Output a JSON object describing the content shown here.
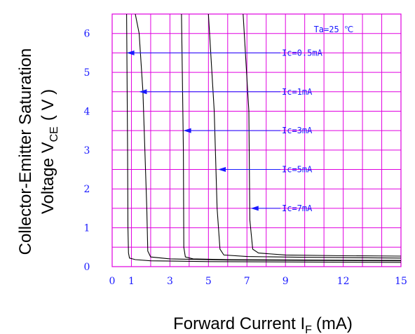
{
  "chart_data": {
    "type": "line",
    "title": "",
    "xlabel": {
      "main": "Forward Current I",
      "sub": "F",
      "unit": "(mA)"
    },
    "ylabel": {
      "line1": "Collector-Emitter Saturation",
      "line2_main": "Voltage V",
      "line2_sub": "CE",
      "line2_unit": "( V )"
    },
    "condition": "Ta=25 ℃",
    "xlim": [
      0,
      15
    ],
    "ylim": [
      0,
      6.5
    ],
    "x_ticks": [
      {
        "value": 0,
        "label": "0"
      },
      {
        "value": 1,
        "label": "1"
      },
      {
        "value": 3,
        "label": "3"
      },
      {
        "value": 5,
        "label": "5"
      },
      {
        "value": 7,
        "label": "7"
      },
      {
        "value": 9,
        "label": "9"
      },
      {
        "value": 12,
        "label": "12"
      },
      {
        "value": 15,
        "label": "15"
      }
    ],
    "y_ticks": [
      {
        "value": 0,
        "label": "0"
      },
      {
        "value": 1,
        "label": "1"
      },
      {
        "value": 2,
        "label": "2"
      },
      {
        "value": 3,
        "label": "3"
      },
      {
        "value": 4,
        "label": "4"
      },
      {
        "value": 5,
        "label": "5"
      },
      {
        "value": 6,
        "label": "6"
      }
    ],
    "grid": true,
    "series": [
      {
        "name": "Ic=0.5mA",
        "label": "Ic=0.5mA",
        "x": [
          0.75,
          0.8,
          0.82,
          0.85,
          0.9,
          1.2,
          2,
          5,
          10,
          15
        ],
        "y": [
          6.5,
          3.0,
          1.0,
          0.35,
          0.22,
          0.18,
          0.15,
          0.13,
          0.12,
          0.11
        ],
        "arrow": {
          "x": 0.75,
          "y": 5.5
        }
      },
      {
        "name": "Ic=1mA",
        "label": "Ic=1mA",
        "x": [
          1.2,
          1.4,
          1.6,
          1.8,
          1.85,
          2.0,
          3,
          6,
          10,
          15
        ],
        "y": [
          6.5,
          6.0,
          4.5,
          1.5,
          0.4,
          0.25,
          0.2,
          0.17,
          0.16,
          0.15
        ],
        "arrow": {
          "x": 1.4,
          "y": 4.5
        }
      },
      {
        "name": "Ic=3mA",
        "label": "Ic=3mA",
        "x": [
          3.6,
          3.7,
          3.72,
          3.8,
          4.2,
          6,
          10,
          15
        ],
        "y": [
          6.5,
          3.0,
          0.5,
          0.25,
          0.2,
          0.18,
          0.17,
          0.16
        ],
        "arrow": {
          "x": 3.7,
          "y": 3.5
        }
      },
      {
        "name": "Ic=5mA",
        "label": "Ic=5mA",
        "x": [
          5.0,
          5.3,
          5.45,
          5.6,
          5.8,
          7,
          10,
          15
        ],
        "y": [
          6.5,
          4.0,
          1.5,
          0.45,
          0.3,
          0.26,
          0.24,
          0.22
        ],
        "arrow": {
          "x": 5.5,
          "y": 2.5
        }
      },
      {
        "name": "Ic=7mA",
        "label": "Ic=7mA",
        "x": [
          6.8,
          7.1,
          7.15,
          7.3,
          7.6,
          9,
          12,
          15
        ],
        "y": [
          6.5,
          4.0,
          1.2,
          0.45,
          0.35,
          0.3,
          0.28,
          0.27
        ],
        "arrow": {
          "x": 7.2,
          "y": 1.5
        }
      }
    ]
  },
  "colors": {
    "grid": "#e000e0",
    "annotation": "#1a1aff",
    "curve": "#000000",
    "axis_title": "#000000"
  }
}
